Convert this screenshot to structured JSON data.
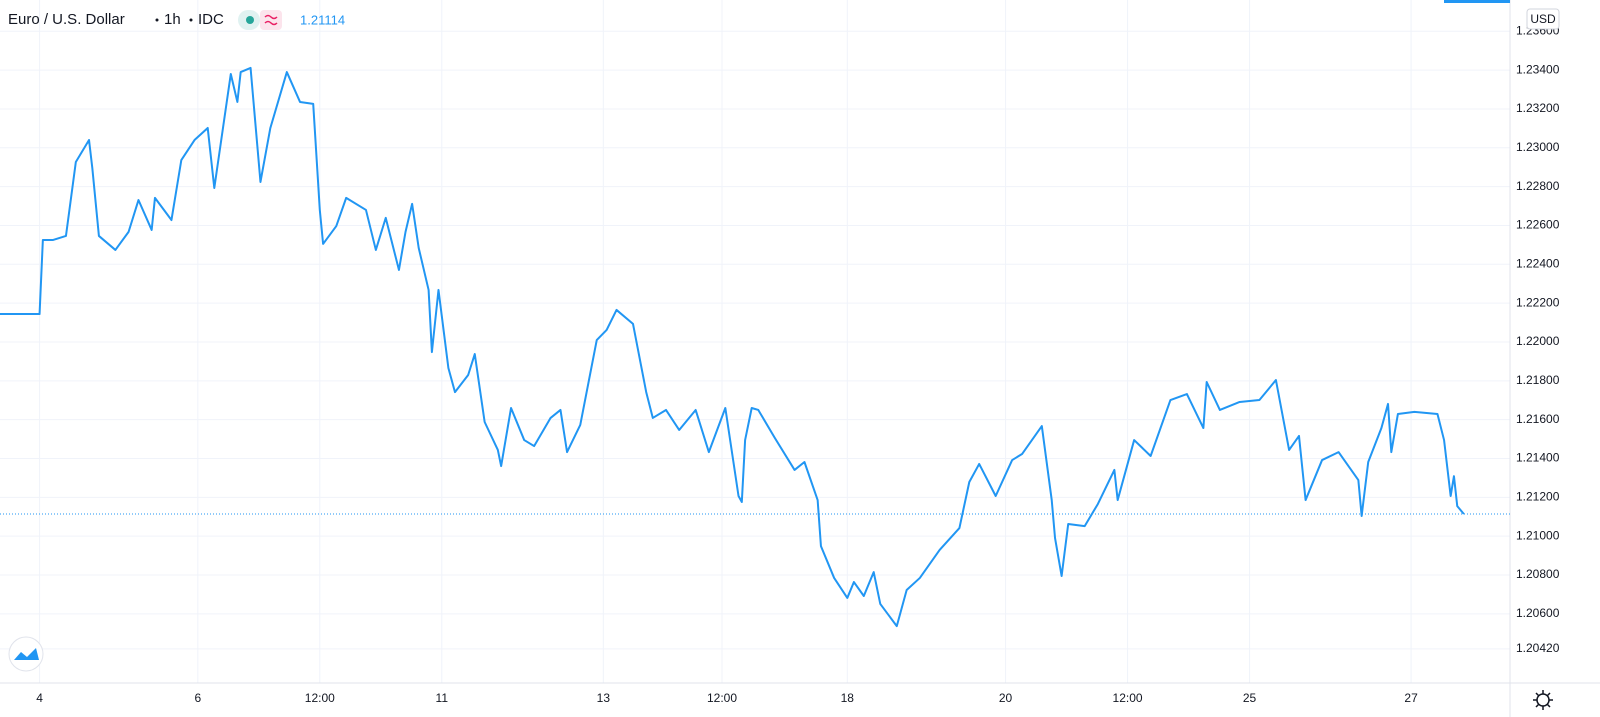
{
  "chart_data": {
    "type": "line",
    "symbol": "Euro / U.S. Dollar",
    "interval": "1h",
    "source": "IDC",
    "last_price": 1.21114,
    "currency": "USD",
    "color": "#2196f3",
    "grid": true,
    "x": [
      0,
      12,
      13,
      16,
      20,
      23,
      27,
      28,
      30,
      35,
      39,
      42,
      46,
      47,
      52,
      55,
      59,
      63,
      65,
      70,
      72,
      73,
      76,
      79,
      82,
      87,
      91,
      95,
      97,
      98,
      102,
      105,
      111,
      114,
      117,
      121,
      123,
      125,
      127,
      130,
      131,
      133,
      136,
      138,
      142,
      144,
      147,
      151,
      152,
      155,
      159,
      162,
      167,
      170,
      172,
      176,
      181,
      184,
      187,
      192,
      196,
      198,
      202,
      206,
      211,
      215,
      220,
      224,
      225,
      226,
      228,
      230,
      235,
      241,
      244,
      248,
      249,
      253,
      257,
      259,
      262,
      265,
      267,
      272,
      275,
      279,
      285,
      291,
      294,
      297,
      302,
      307,
      310,
      316,
      319,
      320,
      322,
      324,
      329,
      333,
      338,
      339,
      344,
      349,
      355,
      360,
      365,
      366,
      370,
      376,
      382,
      387,
      391,
      394,
      396,
      401,
      406,
      412,
      413,
      415,
      419,
      421,
      422,
      424,
      429,
      436,
      438,
      440,
      441,
      442,
      444
    ],
    "values": [
      1.22144,
      1.22144,
      1.22525,
      1.22525,
      1.22546,
      1.22927,
      1.2304,
      1.22896,
      1.22546,
      1.22474,
      1.22567,
      1.22731,
      1.22577,
      1.22742,
      1.22628,
      1.22937,
      1.2304,
      1.23102,
      1.22793,
      1.2338,
      1.23236,
      1.2339,
      1.23411,
      1.22824,
      1.23102,
      1.2339,
      1.23236,
      1.23226,
      1.2268,
      1.22505,
      1.22597,
      1.22742,
      1.2268,
      1.22474,
      1.22639,
      1.22371,
      1.22567,
      1.22711,
      1.22484,
      1.22268,
      1.21948,
      1.22268,
      1.21866,
      1.21742,
      1.2183,
      1.21938,
      1.21588,
      1.21444,
      1.21361,
      1.2166,
      1.21495,
      1.21464,
      1.21609,
      1.2165,
      1.21433,
      1.21573,
      1.2201,
      1.22062,
      1.22165,
      1.22093,
      1.21742,
      1.21609,
      1.2165,
      1.21547,
      1.2165,
      1.21433,
      1.2166,
      1.21207,
      1.21176,
      1.21495,
      1.2166,
      1.2165,
      1.21506,
      1.21341,
      1.21382,
      1.21186,
      1.20949,
      1.20785,
      1.20682,
      1.20764,
      1.20692,
      1.20815,
      1.20651,
      1.20537,
      1.20723,
      1.20785,
      1.20929,
      1.21042,
      1.21279,
      1.21372,
      1.21207,
      1.21392,
      1.21423,
      1.21567,
      1.21186,
      1.20991,
      1.20795,
      1.21063,
      1.21052,
      1.21166,
      1.21341,
      1.21186,
      1.21495,
      1.21413,
      1.21701,
      1.21732,
      1.21557,
      1.21794,
      1.2165,
      1.21691,
      1.21701,
      1.21804,
      1.21444,
      1.21516,
      1.21186,
      1.21392,
      1.21433,
      1.21289,
      1.21104,
      1.21382,
      1.21557,
      1.21681,
      1.21433,
      1.21629,
      1.2164,
      1.21629,
      1.21495,
      1.21207,
      1.21309,
      1.21155,
      1.21114
    ],
    "xlim": [
      0,
      458
    ],
    "xticks": [
      {
        "value": 12,
        "label": "4"
      },
      {
        "value": 60,
        "label": "6"
      },
      {
        "value": 97,
        "label": "12:00"
      },
      {
        "value": 134,
        "label": "11"
      },
      {
        "value": 183,
        "label": "13"
      },
      {
        "value": 219,
        "label": "12:00"
      },
      {
        "value": 257,
        "label": "18"
      },
      {
        "value": 305,
        "label": "20"
      },
      {
        "value": 342,
        "label": "12:00"
      },
      {
        "value": 379,
        "label": "25"
      },
      {
        "value": 428,
        "label": "27"
      }
    ],
    "ylim": [
      1.20244,
      1.23761
    ],
    "yticks": [
      {
        "value": 1.236,
        "label": "1.23600"
      },
      {
        "value": 1.234,
        "label": "1.23400"
      },
      {
        "value": 1.232,
        "label": "1.23200"
      },
      {
        "value": 1.23,
        "label": "1.23000"
      },
      {
        "value": 1.228,
        "label": "1.22800"
      },
      {
        "value": 1.226,
        "label": "1.22600"
      },
      {
        "value": 1.224,
        "label": "1.22400"
      },
      {
        "value": 1.222,
        "label": "1.22200"
      },
      {
        "value": 1.22,
        "label": "1.22000"
      },
      {
        "value": 1.218,
        "label": "1.21800"
      },
      {
        "value": 1.216,
        "label": "1.21600"
      },
      {
        "value": 1.214,
        "label": "1.21400"
      },
      {
        "value": 1.212,
        "label": "1.21200"
      },
      {
        "value": 1.21,
        "label": "1.21000"
      },
      {
        "value": 1.208,
        "label": "1.20800"
      },
      {
        "value": 1.206,
        "label": "1.20600"
      },
      {
        "value": 1.2042,
        "label": "1.20420"
      }
    ]
  }
}
